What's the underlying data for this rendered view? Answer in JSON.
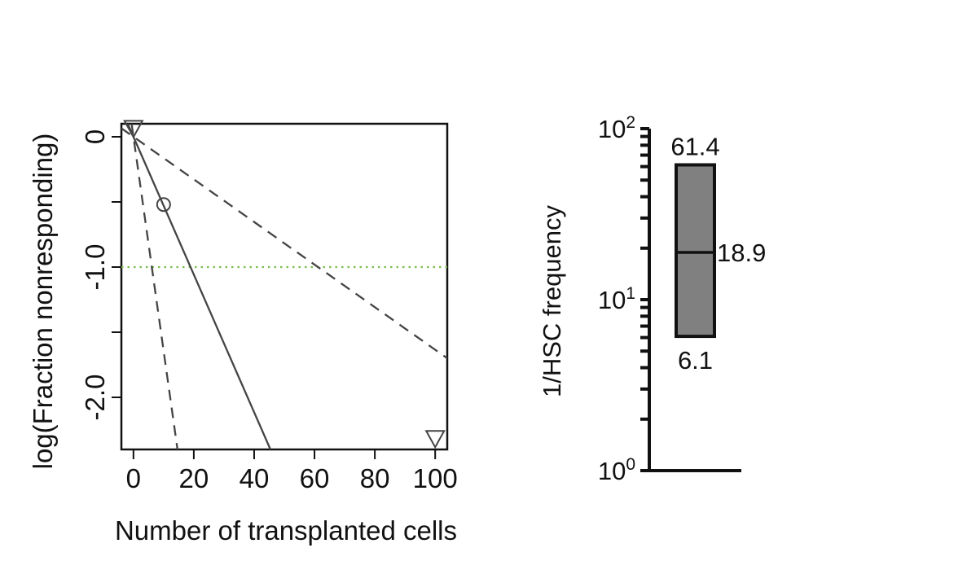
{
  "chart_data": [
    {
      "type": "line",
      "xlabel": "Number of transplanted cells",
      "ylabel": "log(Fraction nonresponding)",
      "xlim": [
        -4,
        104
      ],
      "ylim": [
        -2.4,
        0.1
      ],
      "x_ticks": [
        0,
        20,
        40,
        60,
        80,
        100
      ],
      "x_tick_labels": [
        "0",
        "20",
        "40",
        "60",
        "80",
        "100"
      ],
      "y_ticks": [
        0,
        -1.0,
        -2.0
      ],
      "y_tick_labels": [
        "0",
        "-1.0",
        "-2.0"
      ],
      "y_minor_ticks": [
        -0.5,
        -1.5
      ],
      "series": [
        {
          "style": "solid",
          "x": [
            0,
            45.4
          ],
          "y": [
            0,
            -2.4
          ]
        },
        {
          "style": "dashed",
          "x": [
            0,
            14.6
          ],
          "y": [
            0,
            -2.4
          ]
        },
        {
          "style": "dashed",
          "x": [
            0,
            104
          ],
          "y": [
            0,
            -1.7
          ]
        }
      ],
      "reference_line": {
        "y": -1.0,
        "style": "dotted",
        "color": "#7dbd4f"
      },
      "points": [
        {
          "x": 10,
          "y": -0.52,
          "marker": "circle"
        },
        {
          "x": 100,
          "y": -2.32,
          "marker": "triangle-down"
        },
        {
          "x": 0,
          "y": 0.06,
          "marker": "triangle-down"
        }
      ]
    },
    {
      "type": "bar",
      "ylabel": "1/HSC frequency",
      "yscale": "log",
      "ylim": [
        1,
        100
      ],
      "y_ticks": [
        {
          "base": "10",
          "exp": "0",
          "value": 1
        },
        {
          "base": "10",
          "exp": "1",
          "value": 10
        },
        {
          "base": "10",
          "exp": "2",
          "value": 100
        }
      ],
      "estimate": {
        "value": 18.9,
        "label": "18.9"
      },
      "upper": {
        "value": 61.4,
        "label": "61.4"
      },
      "lower": {
        "value": 6.1,
        "label": "6.1"
      },
      "bar_color": "#808080"
    }
  ]
}
